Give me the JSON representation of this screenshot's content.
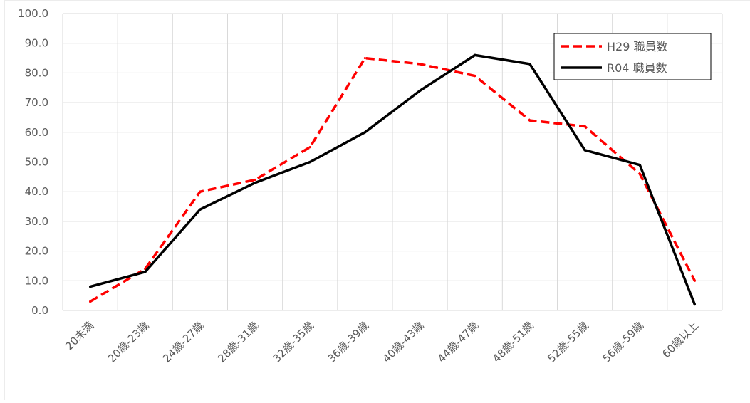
{
  "chart_data": {
    "type": "line",
    "categories": [
      "20未満",
      "20歳-23歳",
      "24歳-27歳",
      "28歳-31歳",
      "32歳-35歳",
      "36歳-39歳",
      "40歳-43歳",
      "44歳-47歳",
      "48歳-51歳",
      "52歳-55歳",
      "56歳-59歳",
      "60歳以上"
    ],
    "series": [
      {
        "name": "H29 職員数",
        "color": "#ff0000",
        "dash": "dashed",
        "values": [
          3,
          14,
          40,
          44,
          55,
          85,
          83,
          79,
          64,
          62,
          46,
          10
        ]
      },
      {
        "name": "R04 職員数",
        "color": "#000000",
        "dash": "solid",
        "values": [
          8,
          13,
          34,
          43,
          50,
          60,
          74,
          86,
          83,
          54,
          49,
          2
        ]
      }
    ],
    "ylim": [
      0,
      100
    ],
    "yticks": [
      "0.0",
      "10.0",
      "20.0",
      "30.0",
      "40.0",
      "50.0",
      "60.0",
      "70.0",
      "80.0",
      "90.0",
      "100.0"
    ],
    "grid": true,
    "legend_position": "top-right",
    "xlabel": "",
    "ylabel": "",
    "title": ""
  }
}
